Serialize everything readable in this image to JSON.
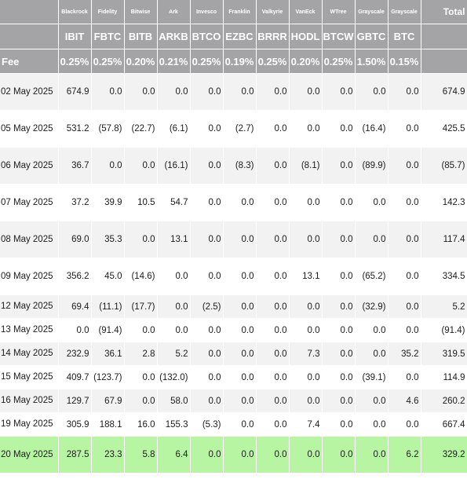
{
  "header": {
    "issuers": [
      "Blackrock",
      "Fidelity",
      "Bitwise",
      "Ark",
      "Invesco",
      "Franklin",
      "Valkyrie",
      "VanEck",
      "WTree",
      "Grayscale",
      "Grayscale"
    ],
    "total_label": "Total",
    "tickers": [
      "IBIT",
      "FBTC",
      "BITB",
      "ARKB",
      "BTCO",
      "EZBC",
      "BRRR",
      "HODL",
      "BTCW",
      "GBTC",
      "BTC"
    ],
    "fee_label": "Fee",
    "fees": [
      "0.25%",
      "0.25%",
      "0.20%",
      "0.21%",
      "0.25%",
      "0.19%",
      "0.25%",
      "0.20%",
      "0.25%",
      "1.50%",
      "0.15%"
    ]
  },
  "colors": {
    "header_bg": "#a4a4a6",
    "stripe": "#f2f2f2",
    "highlight": "#b7f5a3",
    "negative": "#d0312d"
  },
  "rows": [
    {
      "date": "02 May 2025",
      "values": [
        "674.9",
        "0.0",
        "0.0",
        "0.0",
        "0.0",
        "0.0",
        "0.0",
        "0.0",
        "0.0",
        "0.0",
        "0.0"
      ],
      "total": "674.9"
    },
    {
      "date": "05 May 2025",
      "values": [
        "531.2",
        "(57.8)",
        "(22.7)",
        "(6.1)",
        "0.0",
        "(2.7)",
        "0.0",
        "0.0",
        "0.0",
        "(16.4)",
        "0.0"
      ],
      "total": "425.5"
    },
    {
      "date": "06 May 2025",
      "values": [
        "36.7",
        "0.0",
        "0.0",
        "(16.1)",
        "0.0",
        "(8.3)",
        "0.0",
        "(8.1)",
        "0.0",
        "(89.9)",
        "0.0"
      ],
      "total": "(85.7)"
    },
    {
      "date": "07 May 2025",
      "values": [
        "37.2",
        "39.9",
        "10.5",
        "54.7",
        "0.0",
        "0.0",
        "0.0",
        "0.0",
        "0.0",
        "0.0",
        "0.0"
      ],
      "total": "142.3"
    },
    {
      "date": "08 May 2025",
      "values": [
        "69.0",
        "35.3",
        "0.0",
        "13.1",
        "0.0",
        "0.0",
        "0.0",
        "0.0",
        "0.0",
        "0.0",
        "0.0"
      ],
      "total": "117.4"
    },
    {
      "date": "09 May 2025",
      "values": [
        "356.2",
        "45.0",
        "(14.6)",
        "0.0",
        "0.0",
        "0.0",
        "0.0",
        "13.1",
        "0.0",
        "(65.2)",
        "0.0"
      ],
      "total": "334.5"
    },
    {
      "date": "12 May 2025",
      "values": [
        "69.4",
        "(11.1)",
        "(17.7)",
        "0.0",
        "(2.5)",
        "0.0",
        "0.0",
        "0.0",
        "0.0",
        "(32.9)",
        "0.0"
      ],
      "total": "5.2"
    },
    {
      "date": "13 May 2025",
      "values": [
        "0.0",
        "(91.4)",
        "0.0",
        "0.0",
        "0.0",
        "0.0",
        "0.0",
        "0.0",
        "0.0",
        "0.0",
        "0.0"
      ],
      "total": "(91.4)"
    },
    {
      "date": "14 May 2025",
      "values": [
        "232.9",
        "36.1",
        "2.8",
        "5.2",
        "0.0",
        "0.0",
        "0.0",
        "7.3",
        "0.0",
        "0.0",
        "35.2"
      ],
      "total": "319.5"
    },
    {
      "date": "15 May 2025",
      "values": [
        "409.7",
        "(123.7)",
        "0.0",
        "(132.0)",
        "0.0",
        "0.0",
        "0.0",
        "0.0",
        "0.0",
        "(39.1)",
        "0.0"
      ],
      "total": "114.9"
    },
    {
      "date": "16 May 2025",
      "values": [
        "129.7",
        "67.9",
        "0.0",
        "58.0",
        "0.0",
        "0.0",
        "0.0",
        "0.0",
        "0.0",
        "0.0",
        "4.6"
      ],
      "total": "260.2"
    },
    {
      "date": "19 May 2025",
      "values": [
        "305.9",
        "188.1",
        "16.0",
        "155.3",
        "(5.3)",
        "0.0",
        "0.0",
        "7.4",
        "0.0",
        "0.0",
        "0.0"
      ],
      "total": "667.4"
    },
    {
      "date": "20 May 2025",
      "values": [
        "287.5",
        "23.3",
        "5.8",
        "6.4",
        "0.0",
        "0.0",
        "0.0",
        "0.0",
        "0.0",
        "0.0",
        "6.2"
      ],
      "total": "329.2"
    }
  ]
}
